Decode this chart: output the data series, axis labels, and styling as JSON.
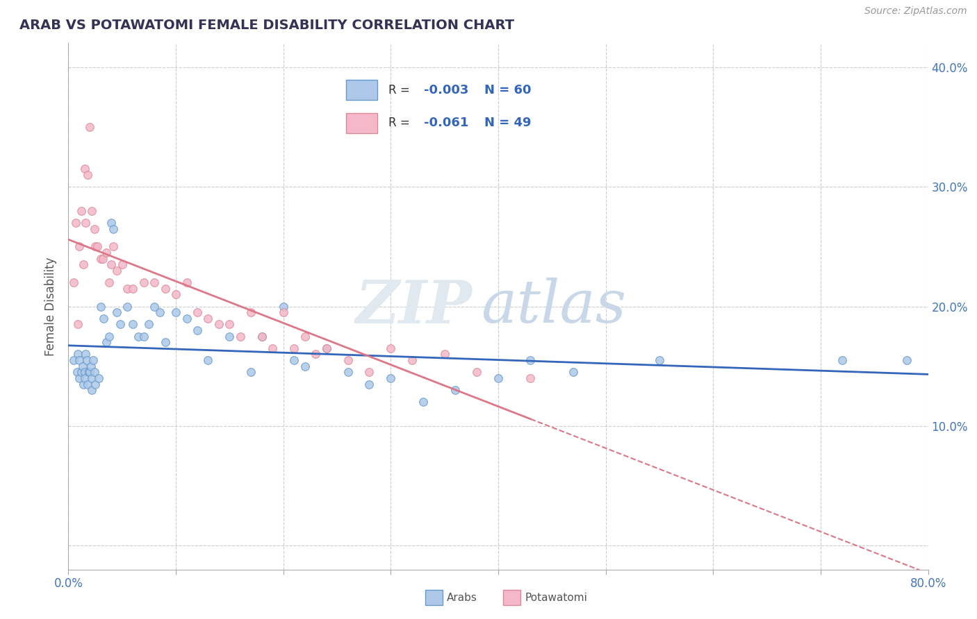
{
  "title": "ARAB VS POTAWATOMI FEMALE DISABILITY CORRELATION CHART",
  "source": "Source: ZipAtlas.com",
  "ylabel": "Female Disability",
  "xlim": [
    0.0,
    0.8
  ],
  "ylim": [
    -0.02,
    0.42
  ],
  "arab_color": "#adc8e8",
  "potawatomi_color": "#f4b8c8",
  "arab_edge_color": "#6699cc",
  "potawatomi_edge_color": "#dd8899",
  "arab_line_color": "#3366bb",
  "potawatomi_line_color": "#dd7788",
  "legend_R_arab": "-0.003",
  "legend_N_arab": "60",
  "legend_R_pota": "-0.061",
  "legend_N_pota": "49",
  "arab_points_x": [
    0.005,
    0.008,
    0.009,
    0.01,
    0.01,
    0.012,
    0.013,
    0.014,
    0.015,
    0.015,
    0.016,
    0.017,
    0.018,
    0.019,
    0.02,
    0.021,
    0.022,
    0.022,
    0.023,
    0.024,
    0.025,
    0.028,
    0.03,
    0.033,
    0.035,
    0.038,
    0.04,
    0.042,
    0.045,
    0.048,
    0.055,
    0.06,
    0.065,
    0.07,
    0.075,
    0.08,
    0.085,
    0.09,
    0.1,
    0.11,
    0.12,
    0.13,
    0.15,
    0.17,
    0.18,
    0.2,
    0.21,
    0.22,
    0.24,
    0.26,
    0.28,
    0.3,
    0.33,
    0.36,
    0.4,
    0.43,
    0.47,
    0.55,
    0.72,
    0.78
  ],
  "arab_points_y": [
    0.155,
    0.145,
    0.16,
    0.14,
    0.155,
    0.145,
    0.15,
    0.135,
    0.145,
    0.14,
    0.16,
    0.155,
    0.135,
    0.145,
    0.145,
    0.15,
    0.14,
    0.13,
    0.155,
    0.145,
    0.135,
    0.14,
    0.2,
    0.19,
    0.17,
    0.175,
    0.27,
    0.265,
    0.195,
    0.185,
    0.2,
    0.185,
    0.175,
    0.175,
    0.185,
    0.2,
    0.195,
    0.17,
    0.195,
    0.19,
    0.18,
    0.155,
    0.175,
    0.145,
    0.175,
    0.2,
    0.155,
    0.15,
    0.165,
    0.145,
    0.135,
    0.14,
    0.12,
    0.13,
    0.14,
    0.155,
    0.145,
    0.155,
    0.155,
    0.155
  ],
  "potawatomi_points_x": [
    0.005,
    0.007,
    0.009,
    0.01,
    0.012,
    0.014,
    0.015,
    0.016,
    0.018,
    0.02,
    0.022,
    0.024,
    0.025,
    0.027,
    0.03,
    0.032,
    0.035,
    0.038,
    0.04,
    0.042,
    0.045,
    0.05,
    0.055,
    0.06,
    0.07,
    0.08,
    0.09,
    0.1,
    0.11,
    0.12,
    0.13,
    0.14,
    0.15,
    0.16,
    0.17,
    0.18,
    0.19,
    0.2,
    0.21,
    0.22,
    0.23,
    0.24,
    0.26,
    0.28,
    0.3,
    0.32,
    0.35,
    0.38,
    0.43
  ],
  "potawatomi_points_y": [
    0.22,
    0.27,
    0.185,
    0.25,
    0.28,
    0.235,
    0.315,
    0.27,
    0.31,
    0.35,
    0.28,
    0.265,
    0.25,
    0.25,
    0.24,
    0.24,
    0.245,
    0.22,
    0.235,
    0.25,
    0.23,
    0.235,
    0.215,
    0.215,
    0.22,
    0.22,
    0.215,
    0.21,
    0.22,
    0.195,
    0.19,
    0.185,
    0.185,
    0.175,
    0.195,
    0.175,
    0.165,
    0.195,
    0.165,
    0.175,
    0.16,
    0.165,
    0.155,
    0.145,
    0.165,
    0.155,
    0.16,
    0.145,
    0.14
  ]
}
